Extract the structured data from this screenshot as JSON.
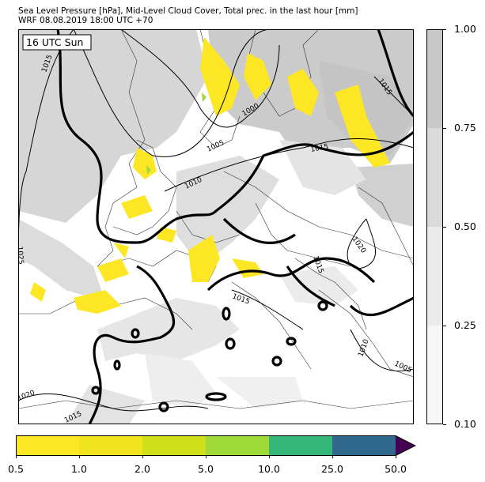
{
  "title_line1": "Sea Level Pressure [hPa], Mid-Level Cloud Cover, Total prec. in the last hour [mm]",
  "title_line2": "WRF 08.08.2019 18:00 UTC +70",
  "time_label": "16 UTC Sun",
  "isobar_labels": [
    "1015",
    "1000",
    "1005",
    "1015",
    "1010",
    "1015",
    "1020",
    "1015",
    "1025",
    "1015",
    "1010",
    "1005",
    "1020",
    "1015"
  ],
  "cloud_colorbar": {
    "ticks": [
      "1.00",
      "0.75",
      "0.50",
      "0.25",
      "0.10"
    ],
    "colors": [
      "#c8c8c8",
      "#dadada",
      "#ebebeb",
      "#f7f7f7"
    ]
  },
  "precip_colorbar": {
    "ticks": [
      "0.5",
      "1.0",
      "2.0",
      "5.0",
      "10.0",
      "25.0",
      "50.0"
    ],
    "colors": [
      "#fde725",
      "#f0e51c",
      "#d0e11c",
      "#a0da39",
      "#35b779",
      "#31688e",
      "#440154"
    ]
  }
}
